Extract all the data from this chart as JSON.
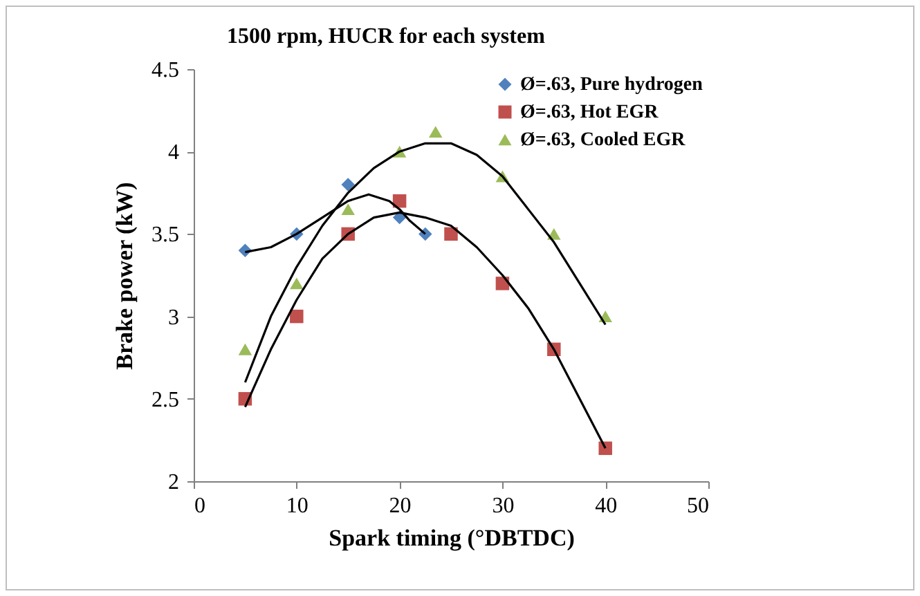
{
  "chart_data": {
    "type": "scatter",
    "title": "1500 rpm, HUCR for each system",
    "xlabel": "Spark timing (°DBTDC)",
    "ylabel": "Brake power (kW)",
    "xlim": [
      0,
      50
    ],
    "xticks": [
      0,
      10,
      20,
      30,
      40,
      50
    ],
    "ylim": [
      2,
      4.5
    ],
    "yticks": [
      2,
      2.5,
      3,
      3.5,
      4,
      4.5
    ],
    "legend": "top right",
    "series": [
      {
        "name": "Ø=.63, Pure hydrogen",
        "color": "#4f81bd",
        "marker": "diamond",
        "x": [
          5,
          10,
          15,
          20,
          22.5
        ],
        "values": [
          3.4,
          3.5,
          3.8,
          3.6,
          3.5
        ]
      },
      {
        "name": "Ø=.63, Hot EGR",
        "color": "#c0504d",
        "marker": "square",
        "x": [
          5,
          10,
          15,
          20,
          25,
          30,
          35,
          40
        ],
        "values": [
          2.5,
          3.0,
          3.5,
          3.7,
          3.5,
          3.2,
          2.8,
          2.2
        ]
      },
      {
        "name": "Ø=.63, Cooled EGR",
        "color": "#9bbb59",
        "marker": "triangle",
        "x": [
          5,
          10,
          15,
          20,
          23.5,
          30,
          35,
          40
        ],
        "values": [
          2.8,
          3.2,
          3.65,
          4.0,
          4.12,
          3.85,
          3.5,
          3.0
        ]
      },
      {
        "type": "line",
        "color": "#000000",
        "marker": "none",
        "line_style": "solid",
        "x": [
          5,
          7.5,
          10,
          12.5,
          15,
          17,
          19,
          20,
          21,
          22.5
        ],
        "values": [
          3.39,
          3.42,
          3.5,
          3.6,
          3.7,
          3.74,
          3.7,
          3.65,
          3.58,
          3.5
        ]
      },
      {
        "type": "line",
        "color": "#000000",
        "marker": "none",
        "line_style": "solid",
        "x": [
          5,
          7.5,
          10,
          12.5,
          15,
          17.5,
          20,
          22.5,
          25,
          27.5,
          30,
          32.5,
          35,
          37.5,
          40
        ],
        "values": [
          2.45,
          2.8,
          3.1,
          3.35,
          3.5,
          3.6,
          3.63,
          3.6,
          3.55,
          3.42,
          3.25,
          3.05,
          2.8,
          2.5,
          2.2
        ]
      },
      {
        "type": "line",
        "color": "#000000",
        "marker": "none",
        "line_style": "solid",
        "x": [
          5,
          7.5,
          10,
          12.5,
          15,
          17.5,
          20,
          22.5,
          25,
          27.5,
          30,
          32.5,
          35,
          37.5,
          40
        ],
        "values": [
          2.6,
          3.0,
          3.3,
          3.55,
          3.75,
          3.9,
          4.0,
          4.05,
          4.05,
          3.98,
          3.85,
          3.65,
          3.45,
          3.2,
          2.95
        ]
      }
    ]
  }
}
